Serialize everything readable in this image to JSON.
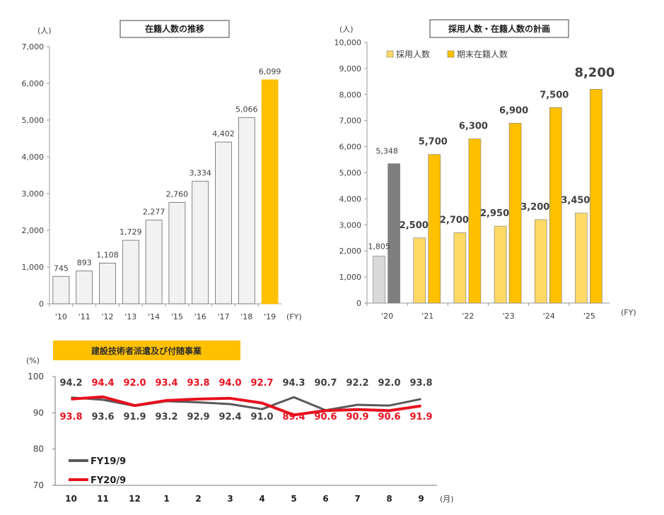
{
  "chart_data": [
    {
      "type": "bar",
      "title": "在籍人数の推移",
      "yunit": "(人)",
      "xunit": "(FY)",
      "ylim": [
        0,
        7000
      ],
      "yticks": [
        "0",
        "1,000",
        "2,000",
        "3,000",
        "4,000",
        "5,000",
        "6,000",
        "7,000"
      ],
      "categories": [
        "'10",
        "'11",
        "'12",
        "'13",
        "'14",
        "'15",
        "'16",
        "'17",
        "'18",
        "'19"
      ],
      "values": [
        745,
        893,
        1108,
        1729,
        2277,
        2760,
        3334,
        4402,
        5066,
        6099
      ],
      "labels": [
        "745",
        "893",
        "1,108",
        "1,729",
        "2,277",
        "2,760",
        "3,334",
        "4,402",
        "5,066",
        "6,099"
      ],
      "colors": {
        "normal": "#f2f2f2",
        "highlight": "#ffc000",
        "border": "#666666"
      }
    },
    {
      "type": "bar",
      "title": "採用人数・在籍人数の計画",
      "yunit": "(人)",
      "xunit": "(FY)",
      "ylim": [
        0,
        10000
      ],
      "yticks": [
        "0",
        "1,000",
        "2,000",
        "3,000",
        "4,000",
        "5,000",
        "6,000",
        "7,000",
        "8,000",
        "9,000",
        "10,000"
      ],
      "categories": [
        "'20",
        "'21",
        "'22",
        "'23",
        "'24",
        "'25"
      ],
      "series": [
        {
          "name": "採用人数",
          "values": [
            1805,
            2500,
            2700,
            2950,
            3200,
            3450
          ],
          "labels": [
            "1,805",
            "2,500",
            "2,700",
            "2,950",
            "3,200",
            "3,450"
          ]
        },
        {
          "name": "期末在籍人数",
          "values": [
            5348,
            5700,
            6300,
            6900,
            7500,
            8200
          ],
          "labels": [
            "5,348",
            "5,700",
            "6,300",
            "6,900",
            "7,500",
            "8,200"
          ]
        }
      ],
      "legend": "top-left",
      "colors": {
        "hire_actual": "#d9d9d9",
        "staff_actual": "#7f7f7f",
        "hire_plan": "#ffd966",
        "staff_plan": "#ffc000"
      }
    },
    {
      "type": "line",
      "title": "建設技術者派遣及び付随事業",
      "yunit": "(%)",
      "xunit": "(月)",
      "ylim": [
        70,
        100
      ],
      "yticks": [
        "70",
        "80",
        "90",
        "100"
      ],
      "categories": [
        "10",
        "11",
        "12",
        "1",
        "2",
        "3",
        "4",
        "5",
        "6",
        "7",
        "8",
        "9"
      ],
      "series": [
        {
          "name": "FY19/9",
          "values": [
            94.2,
            93.6,
            91.9,
            93.2,
            92.9,
            92.4,
            91.0,
            94.3,
            90.7,
            92.2,
            92.0,
            93.8
          ],
          "labels": [
            "94.2",
            "93.6",
            "91.9",
            "93.2",
            "92.9",
            "92.4",
            "91.0",
            "94.3",
            "90.7",
            "92.2",
            "92.0",
            "93.8"
          ],
          "color": "#595959"
        },
        {
          "name": "FY20/9",
          "values": [
            93.8,
            94.4,
            92.0,
            93.4,
            93.8,
            94.0,
            92.7,
            89.4,
            90.6,
            90.9,
            90.6,
            91.9
          ],
          "labels": [
            "93.8",
            "94.4",
            "92.0",
            "93.4",
            "93.8",
            "94.0",
            "92.7",
            "89.4",
            "90.6",
            "90.9",
            "90.6",
            "91.9"
          ],
          "color": "#e8101e"
        }
      ],
      "legend": "bottom-left",
      "banner_color": "#ffc000"
    }
  ]
}
